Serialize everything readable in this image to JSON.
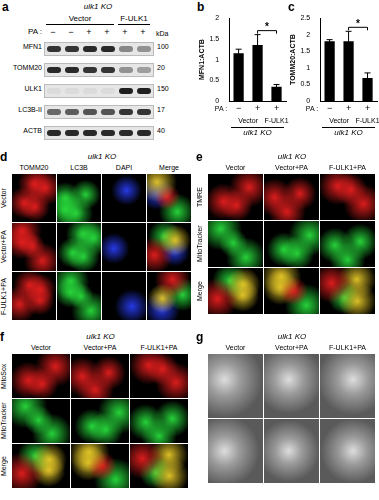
{
  "panels": {
    "a": {
      "letter": "a",
      "header": "ulk1 KO",
      "groups": [
        {
          "label": "Vector",
          "lanes": 4
        },
        {
          "label": "F-ULK1",
          "lanes": 2
        }
      ],
      "treatment_label": "PA :",
      "treatment": [
        "−",
        "−",
        "+",
        "+",
        "+",
        "+"
      ],
      "unit": "kDa",
      "rows": [
        {
          "protein": "MFN1",
          "kDa": 100
        },
        {
          "protein": "TOMM20",
          "kDa": 20
        },
        {
          "protein": "ULK1",
          "kDa": 150
        },
        {
          "protein": "LC3B-II",
          "kDa": 17
        },
        {
          "protein": "ACTB",
          "kDa": 40
        }
      ]
    },
    "d": {
      "letter": "d",
      "header": "ulk1 KO",
      "columns": [
        "TOMM20",
        "LC3B",
        "DAPI",
        "Merge"
      ],
      "rows": [
        "Vector",
        "Vector+PA",
        "F-ULK1+PA"
      ]
    },
    "e": {
      "letter": "e",
      "header": "ulk1 KO",
      "columns": [
        "Vector",
        "Vector+PA",
        "F-ULK1+PA"
      ],
      "rows": [
        "TMRE",
        "MitoTracker",
        "Merge"
      ]
    },
    "f": {
      "letter": "f",
      "header": "ulk1 KO",
      "columns": [
        "Vector",
        "Vector+PA",
        "F-ULK1+PA"
      ],
      "rows": [
        "MitoSox",
        "MitoTracker",
        "Merge"
      ]
    },
    "g": {
      "letter": "g",
      "header": "ulk1 KO",
      "columns": [
        "Vector",
        "Vector+PA",
        "F-ULK1+PA"
      ]
    }
  },
  "chart_data": [
    {
      "letter": "b",
      "type": "bar",
      "title": "ulk1 KO",
      "y_label": "MFN1:ACTB",
      "x_label": "PA :",
      "categories": [
        "−",
        "+",
        "+"
      ],
      "groups": [
        {
          "label": "Vector",
          "count": 2
        },
        {
          "label": "F-ULK1",
          "count": 1
        }
      ],
      "values": [
        1.15,
        1.35,
        0.35
      ],
      "errors": [
        0.1,
        0.25,
        0.05
      ],
      "color": "#000000",
      "ylim": [
        0,
        2
      ],
      "yticks": [
        0,
        0.5,
        1,
        1.5,
        2
      ],
      "grid": false,
      "annotations": [
        {
          "text": "*",
          "from": 1,
          "to": 2
        }
      ]
    },
    {
      "letter": "c",
      "type": "bar",
      "title": "ulk1 KO",
      "y_label": "TOMM20:ACTB",
      "x_label": "PA :",
      "categories": [
        "−",
        "+",
        "+"
      ],
      "groups": [
        {
          "label": "Vector",
          "count": 2
        },
        {
          "label": "F-ULK1",
          "count": 1
        }
      ],
      "values": [
        1.8,
        1.8,
        0.7
      ],
      "errors": [
        0.05,
        0.3,
        0.15
      ],
      "color": "#000000",
      "ylim": [
        0,
        2.5
      ],
      "yticks": [
        0,
        0.5,
        1,
        1.5,
        2,
        2.5
      ],
      "grid": false,
      "annotations": [
        {
          "text": "*",
          "from": 1,
          "to": 2
        }
      ]
    }
  ]
}
